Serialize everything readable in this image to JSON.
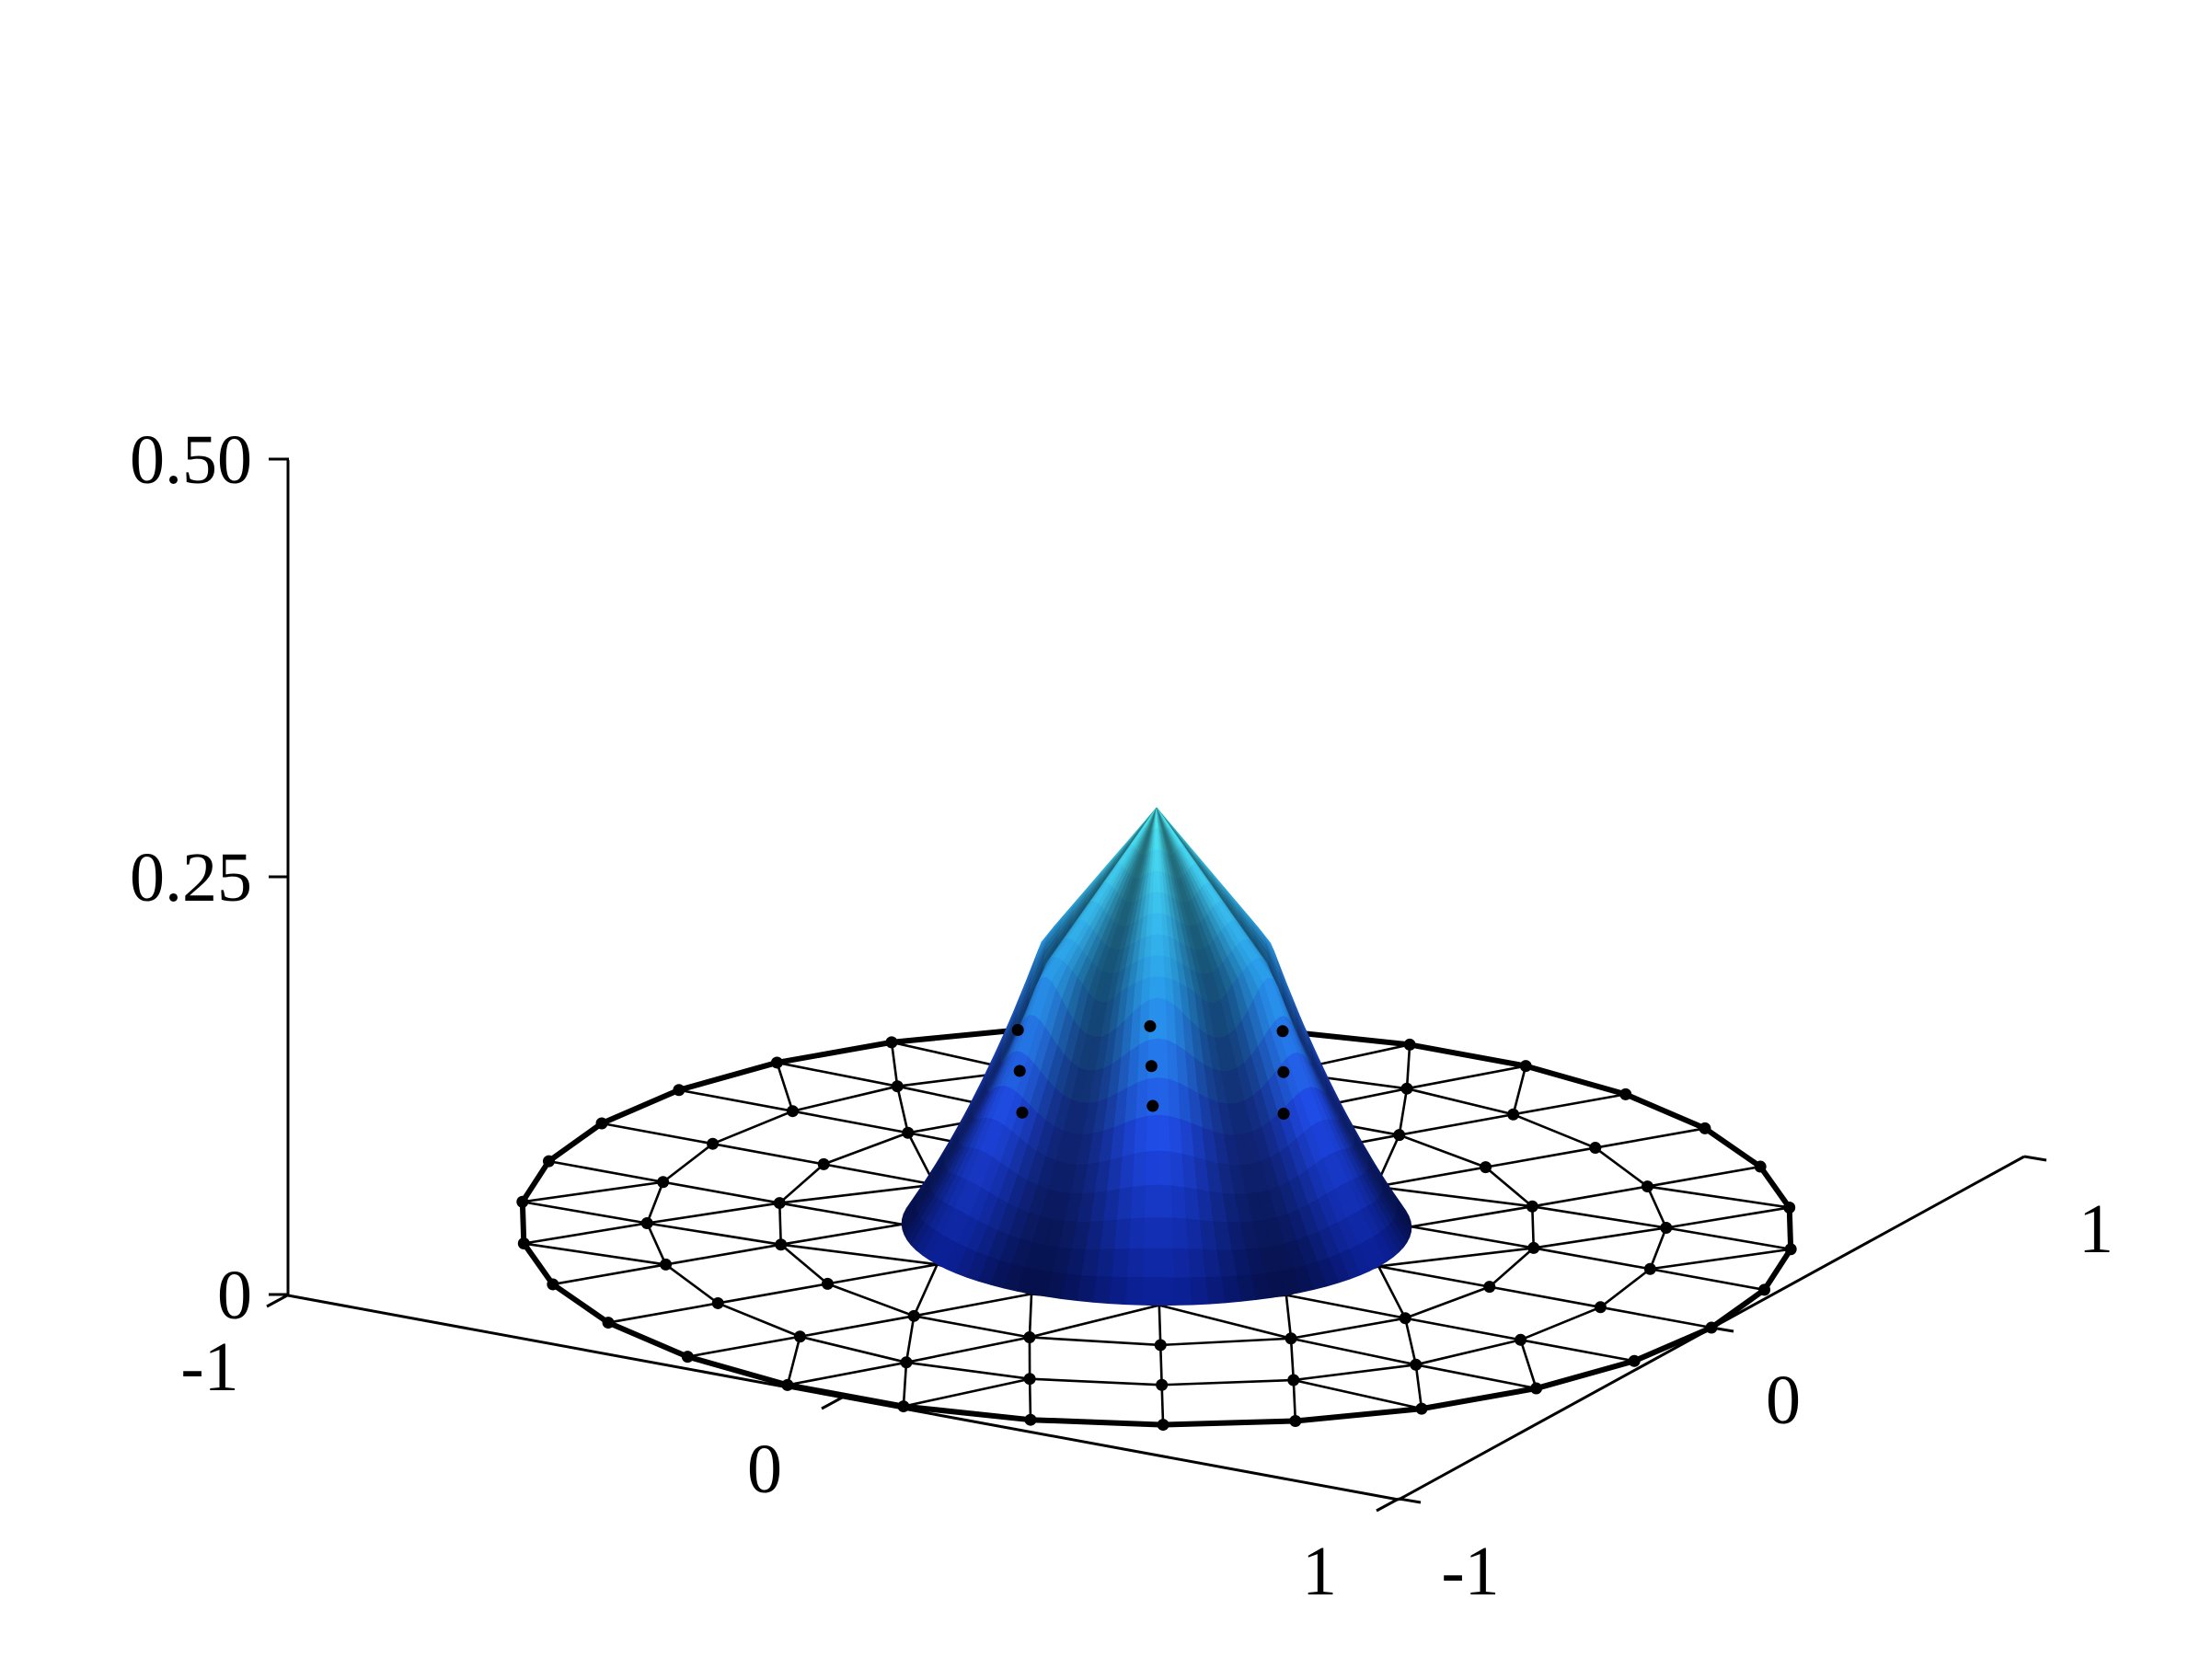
{
  "chart_data": {
    "type": "surface3d",
    "title": "",
    "xlabel": "",
    "ylabel": "",
    "zlabel": "",
    "xlim": [
      -1,
      1
    ],
    "ylim": [
      -1,
      1
    ],
    "zlim": [
      0,
      0.5
    ],
    "x_ticks": [
      "-1",
      "0",
      "1"
    ],
    "y_ticks": [
      "-1",
      "0",
      "1"
    ],
    "z_ticks": [
      "0",
      "0.25",
      "0.50"
    ],
    "x_tick_values": [
      -1,
      0,
      1
    ],
    "y_tick_values": [
      -1,
      0,
      1
    ],
    "z_tick_values": [
      0,
      0.25,
      0.5
    ],
    "domain": "unit disk",
    "mesh": {
      "rings": [
        {
          "radius": 0.0,
          "nodes": 1
        },
        {
          "radius": 0.2,
          "nodes": 6
        },
        {
          "radius": 0.4,
          "nodes": 12
        },
        {
          "radius": 0.6,
          "nodes": 18
        },
        {
          "radius": 0.8,
          "nodes": 24
        },
        {
          "radius": 1.0,
          "nodes": 30
        }
      ]
    },
    "surface": {
      "support_radius": 0.4,
      "peak_value": 0.25,
      "peak_location": [
        0,
        0
      ],
      "shoulder_value": 0.16,
      "colormap": [
        "#0a1d8f",
        "#1e46e0",
        "#2a9fe8",
        "#4fe8f0"
      ]
    },
    "grid": false
  }
}
